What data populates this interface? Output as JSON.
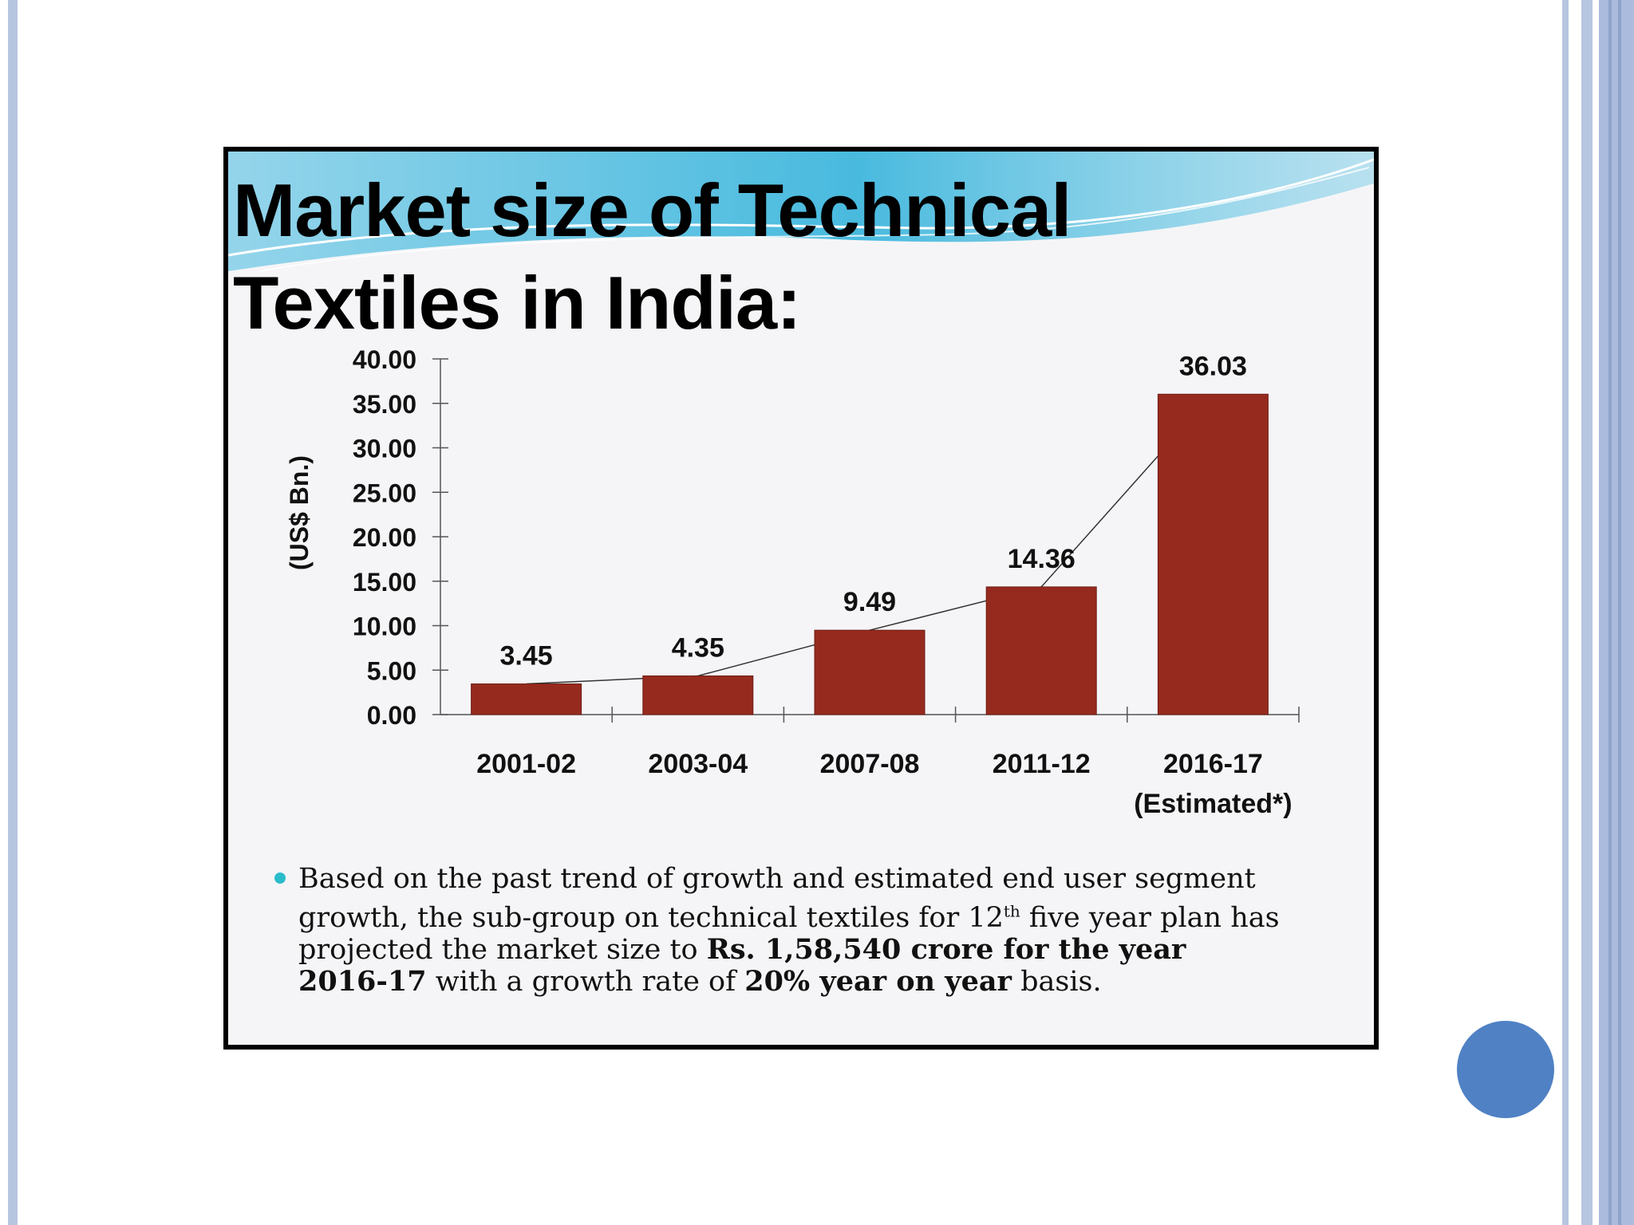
{
  "title_line1": "Market size of Technical",
  "title_line2": "Textiles in India:",
  "chart_data": {
    "type": "bar",
    "categories": [
      [
        "2001-02"
      ],
      [
        "2003-04"
      ],
      [
        "2007-08"
      ],
      [
        "2011-12"
      ],
      [
        "2016-17",
        "(Estimated*)"
      ]
    ],
    "values": [
      3.45,
      4.35,
      9.49,
      14.36,
      36.03
    ],
    "data_labels": [
      "3.45",
      "4.35",
      "9.49",
      "14.36",
      "36.03"
    ],
    "ylabel": "(US$ Bn.)",
    "ylim": [
      0,
      40
    ],
    "yticks": [
      "0.00",
      "5.00",
      "10.00",
      "15.00",
      "20.00",
      "25.00",
      "30.00",
      "35.00",
      "40.00"
    ],
    "trendline": true,
    "grid": false,
    "bar_color": "#962a1e"
  },
  "bullet": {
    "part1": "Based on the past trend of growth and estimated end user segment growth, the sub-group on technical textiles for 12",
    "sup": "th",
    "part2": " five year plan has projected the market size to ",
    "bold1": "Rs. 1,58,540 crore for the year 2016-17",
    "part3": " with a growth rate of ",
    "bold2": "20% year on year",
    "part4": " basis."
  },
  "colors": {
    "bullet_dot": "#2bbccc",
    "slide_circle": "#4f81c4",
    "frame_bars": "#b7c6e0"
  }
}
